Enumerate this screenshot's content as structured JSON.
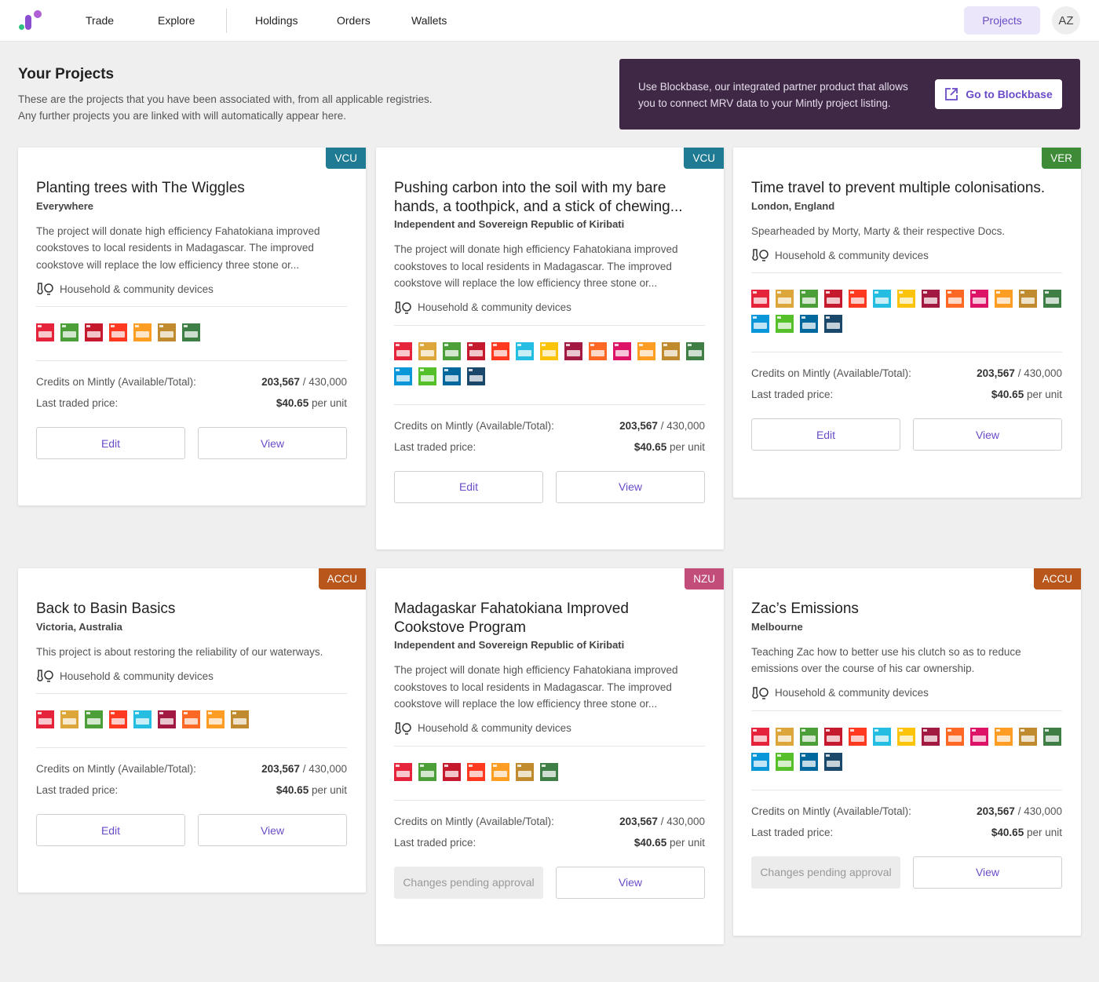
{
  "nav": {
    "links": [
      "Trade",
      "Explore",
      "Holdings",
      "Orders",
      "Wallets"
    ],
    "projects_label": "Projects",
    "avatar_initials": "AZ"
  },
  "header": {
    "title": "Your Projects",
    "subtitle_line1": "These are the projects that you have been associated with, from all applicable registries.",
    "subtitle_line2": "Any further projects you are linked with will automatically appear here."
  },
  "banner": {
    "text": "Use Blockbase, our integrated partner product that allows you to connect MRV data to your Mintly project listing.",
    "button_label": "Go to Blockbase"
  },
  "labels": {
    "credits": "Credits on Mintly (Available/Total):",
    "price": "Last traded price:",
    "per_unit": "per unit",
    "edit": "Edit",
    "view": "View",
    "pending": "Changes pending approval"
  },
  "colors": {
    "VCU": "#1f7a93",
    "VER": "#3d8b37",
    "ACCU": "#b8561b",
    "NZU": "#c24d7b",
    "accent": "#6a4bc8",
    "banner_bg": "#3f2845"
  },
  "sdg_colors": [
    "#e5243b",
    "#dda63a",
    "#4c9f38",
    "#c5192d",
    "#ff3a21",
    "#26bde2",
    "#fcc30b",
    "#a21942",
    "#fd6925",
    "#dd1367",
    "#fd9d24",
    "#bf8b2e",
    "#3f7e44",
    "#0a97d9",
    "#56c02b",
    "#00689d",
    "#19486a"
  ],
  "projects": [
    {
      "registry": "VCU",
      "title": "Planting trees with The Wiggles",
      "location": "Everywhere",
      "description": "The project will donate high efficiency Fahatokiana improved cookstoves to local residents in Madagascar. The improved cookstove will replace the low efficiency three stone or...",
      "category": "Household & community devices",
      "sdgs": [
        1,
        3,
        4,
        5,
        11,
        12,
        13
      ],
      "credits_available": "203,567",
      "credits_total": "/ 430,000",
      "price": "$40.65",
      "status": "editable"
    },
    {
      "registry": "VCU",
      "title": "Pushing carbon into the soil with my bare hands, a toothpick, and a stick of chewing...",
      "location": "Independent and Sovereign Republic of Kiribati",
      "description": "The project will donate high efficiency Fahatokiana improved cookstoves to local residents in Madagascar. The improved cookstove will replace the low efficiency three stone or...",
      "category": "Household & community devices",
      "sdgs": [
        1,
        2,
        3,
        4,
        5,
        6,
        7,
        8,
        9,
        10,
        11,
        12,
        13,
        14,
        15,
        16,
        17
      ],
      "credits_available": "203,567",
      "credits_total": "/ 430,000",
      "price": "$40.65",
      "status": "editable"
    },
    {
      "registry": "VER",
      "title": "Time travel to prevent multiple colonisations.",
      "location": "London, England",
      "description": "Spearheaded by Morty, Marty & their respective Docs.",
      "category": "Household & community devices",
      "sdgs": [
        1,
        2,
        3,
        4,
        5,
        6,
        7,
        8,
        9,
        10,
        11,
        12,
        13,
        14,
        15,
        16,
        17
      ],
      "credits_available": "203,567",
      "credits_total": "/ 430,000",
      "price": "$40.65",
      "status": "editable"
    },
    {
      "registry": "ACCU",
      "title": "Back to Basin Basics",
      "location": "Victoria, Australia",
      "description": "This project is about restoring the reliability of our waterways.",
      "category": "Household & community devices",
      "sdgs": [
        1,
        2,
        3,
        5,
        6,
        8,
        9,
        11,
        12
      ],
      "credits_available": "203,567",
      "credits_total": "/ 430,000",
      "price": "$40.65",
      "status": "editable"
    },
    {
      "registry": "NZU",
      "title": "Madagaskar Fahatokiana Improved Cookstove Program",
      "location": "Independent and Sovereign Republic of Kiribati",
      "description": "The project will donate high efficiency Fahatokiana improved cookstoves to local residents in Madagascar. The improved cookstove will replace the low efficiency three stone or...",
      "category": "Household & community devices",
      "sdgs": [
        1,
        3,
        4,
        5,
        11,
        12,
        13
      ],
      "credits_available": "203,567",
      "credits_total": "/ 430,000",
      "price": "$40.65",
      "status": "pending"
    },
    {
      "registry": "ACCU",
      "title": "Zac’s Emissions",
      "location": "Melbourne",
      "description": "Teaching Zac how to better use his clutch so as to reduce emissions over the course of his car ownership.",
      "category": "Household & community devices",
      "sdgs": [
        1,
        2,
        3,
        4,
        5,
        6,
        7,
        8,
        9,
        10,
        11,
        12,
        13,
        14,
        15,
        16,
        17
      ],
      "credits_available": "203,567",
      "credits_total": "/ 430,000",
      "price": "$40.65",
      "status": "pending"
    }
  ]
}
